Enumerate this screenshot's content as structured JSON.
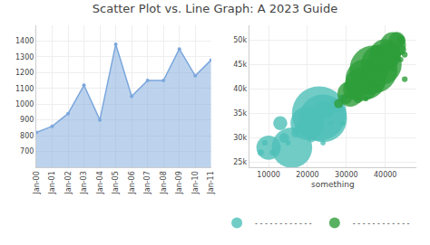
{
  "title": "Scatter Plot vs. Line Graph: A 2023 Guide",
  "chart_data": [
    {
      "type": "line",
      "categories": [
        "Jan-00",
        "Jan-01",
        "Jan-02",
        "Jan-03",
        "Jan-04",
        "Jan-05",
        "Jan-06",
        "Jan-07",
        "Jan-08",
        "Jan-09",
        "Jan-10",
        "Jan-11"
      ],
      "series": [
        {
          "color": "#7ba7dc",
          "marker": "circle",
          "values": [
            820,
            860,
            940,
            1120,
            900,
            1380,
            1050,
            1150,
            1150,
            1350,
            1180,
            1280
          ]
        }
      ],
      "ylim": [
        600,
        1500
      ],
      "yticks": [
        700,
        800,
        900,
        1000,
        1100,
        1200,
        1300,
        1400
      ],
      "grid": true
    },
    {
      "type": "scatter",
      "xlabel": "something",
      "xlim": [
        5,
        48
      ],
      "ylim": [
        24,
        53
      ],
      "xticks": [
        {
          "value": 10,
          "label": "10000"
        },
        {
          "value": 20,
          "label": "20000"
        },
        {
          "value": 30,
          "label": "30000"
        },
        {
          "value": 40,
          "label": "40000"
        }
      ],
      "yticks": [
        {
          "value": 25,
          "label": "25k"
        },
        {
          "value": 30,
          "label": "30k"
        },
        {
          "value": 35,
          "label": "35k"
        },
        {
          "value": 40,
          "label": "40k"
        },
        {
          "value": 45,
          "label": "45k"
        },
        {
          "value": 50,
          "label": "50k"
        }
      ],
      "grid": true,
      "legend": "bottom",
      "series": [
        {
          "colors": [
            "#4dbfb8",
            "#4dbfb8",
            "#4dbfb8",
            "#4dbfb8",
            "#4dbfb8",
            "#4dbfb8",
            "#2d9e3a",
            "#2d9e3a",
            "#2d9e3a",
            "#2d9e3a",
            "#2d9e3a",
            "#2d9e3a",
            "#2d9e3a",
            "#4dbfb8"
          ],
          "x": [
            8,
            9,
            11,
            15,
            19,
            26,
            29,
            35,
            38,
            42,
            44,
            45,
            45,
            24
          ],
          "values": [
            27,
            29,
            27,
            29,
            31,
            33,
            33,
            38,
            41,
            44,
            46,
            47,
            42,
            29
          ],
          "sizes": [
            12,
            10,
            10,
            8,
            8,
            8,
            8,
            8,
            8,
            8,
            8,
            10,
            10,
            8
          ]
        },
        {
          "name": "- - - - - - - - - - - -",
          "color": "#4dbfb8",
          "x": [
            10,
            13,
            14,
            16,
            17,
            18,
            20,
            21,
            22,
            23,
            24,
            24,
            25,
            26,
            27,
            28,
            29
          ],
          "values": [
            28,
            33,
            30,
            28,
            31,
            32,
            33,
            30,
            33,
            35,
            34,
            36,
            35,
            36,
            37,
            36,
            38
          ],
          "sizes": [
            180,
            60,
            30,
            500,
            25,
            30,
            350,
            25,
            40,
            900,
            700,
            80,
            35,
            35,
            35,
            25,
            25
          ]
        },
        {
          "name": "- - - - - - - - - - - -",
          "color": "#2d9e3a",
          "x": [
            28,
            30,
            31,
            32,
            33,
            34,
            35,
            36,
            36,
            37,
            37,
            38,
            38,
            39,
            39,
            40,
            40,
            41,
            41,
            42,
            43,
            44,
            44,
            33
          ],
          "values": [
            37,
            38,
            39,
            40,
            40,
            41,
            42,
            42,
            43,
            43,
            44,
            44,
            45,
            45,
            46,
            46,
            47,
            47,
            48,
            49,
            50,
            50,
            48,
            38
          ],
          "sizes": [
            25,
            35,
            200,
            150,
            80,
            350,
            500,
            300,
            80,
            200,
            700,
            150,
            80,
            500,
            200,
            80,
            300,
            150,
            80,
            200,
            80,
            25,
            35,
            25
          ]
        }
      ]
    }
  ]
}
